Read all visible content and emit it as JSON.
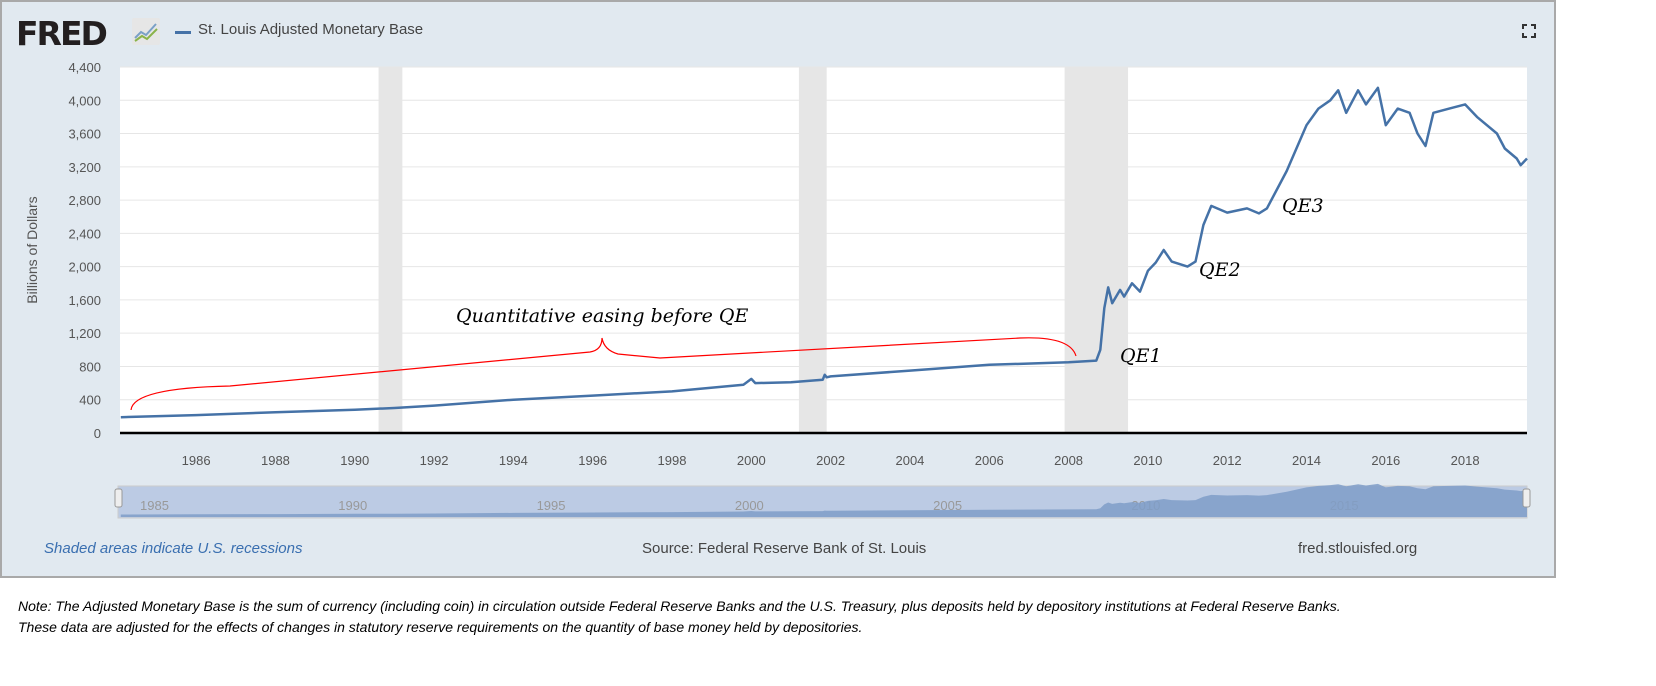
{
  "header": {
    "logo": "FRED",
    "legend_label": "St. Louis Adjusted Monetary Base"
  },
  "footer": {
    "recession_note": "Shaded areas indicate U.S. recessions",
    "source": "Source: Federal Reserve Bank of St. Louis",
    "site": "fred.stlouisfed.org"
  },
  "note": {
    "line1": "Note: The Adjusted Monetary Base is the sum of currency (including coin) in circulation outside Federal Reserve Banks and the U.S. Treasury, plus deposits held by depository institutions at Federal Reserve Banks.",
    "line2": "These data are adjusted for the effects of changes in statutory reserve requirements on the quantity of base money held by depositories."
  },
  "colors": {
    "series": "#4572a7",
    "recession": "#e6e6e6",
    "annotation": "#ff0000",
    "navigator": "#bccbe4"
  },
  "chart_data": {
    "type": "line",
    "ylabel": "Billions of Dollars",
    "xlabel": "",
    "xlim": [
      1984.08,
      2019.56
    ],
    "ylim": [
      0,
      4400
    ],
    "grid": true,
    "legend": "top-left",
    "yticks": [
      "0",
      "400",
      "800",
      "1,200",
      "1,600",
      "2,000",
      "2,400",
      "2,800",
      "3,200",
      "3,600",
      "4,000",
      "4,400"
    ],
    "xticks": [
      "1986",
      "1988",
      "1990",
      "1992",
      "1994",
      "1996",
      "1998",
      "2000",
      "2002",
      "2004",
      "2006",
      "2008",
      "2010",
      "2012",
      "2014",
      "2016",
      "2018"
    ],
    "navigator_ticks": [
      "1985",
      "1990",
      "1995",
      "2000",
      "2005",
      "2010",
      "2015"
    ],
    "recessions": [
      [
        1990.6,
        1991.2
      ],
      [
        2001.2,
        2001.9
      ],
      [
        2007.9,
        2009.5
      ]
    ],
    "series": [
      {
        "name": "St. Louis Adjusted Monetary Base",
        "points": [
          [
            1984.1,
            190
          ],
          [
            1986,
            215
          ],
          [
            1988,
            250
          ],
          [
            1990,
            280
          ],
          [
            1991,
            300
          ],
          [
            1992,
            330
          ],
          [
            1994,
            400
          ],
          [
            1996,
            450
          ],
          [
            1998,
            500
          ],
          [
            1999.8,
            580
          ],
          [
            2000.0,
            650
          ],
          [
            2000.1,
            600
          ],
          [
            2001,
            610
          ],
          [
            2001.8,
            640
          ],
          [
            2001.85,
            700
          ],
          [
            2001.9,
            670
          ],
          [
            2002,
            680
          ],
          [
            2004,
            750
          ],
          [
            2006,
            820
          ],
          [
            2008,
            850
          ],
          [
            2008.7,
            870
          ],
          [
            2008.8,
            1000
          ],
          [
            2008.9,
            1500
          ],
          [
            2009.0,
            1750
          ],
          [
            2009.1,
            1560
          ],
          [
            2009.3,
            1720
          ],
          [
            2009.4,
            1640
          ],
          [
            2009.6,
            1800
          ],
          [
            2009.8,
            1700
          ],
          [
            2010.0,
            1950
          ],
          [
            2010.2,
            2050
          ],
          [
            2010.4,
            2200
          ],
          [
            2010.6,
            2060
          ],
          [
            2011.0,
            2000
          ],
          [
            2011.2,
            2060
          ],
          [
            2011.4,
            2500
          ],
          [
            2011.6,
            2730
          ],
          [
            2012.0,
            2650
          ],
          [
            2012.5,
            2700
          ],
          [
            2012.8,
            2640
          ],
          [
            2013.0,
            2700
          ],
          [
            2013.5,
            3150
          ],
          [
            2014.0,
            3700
          ],
          [
            2014.3,
            3900
          ],
          [
            2014.6,
            4000
          ],
          [
            2014.8,
            4120
          ],
          [
            2015.0,
            3850
          ],
          [
            2015.3,
            4120
          ],
          [
            2015.5,
            3950
          ],
          [
            2015.8,
            4150
          ],
          [
            2016.0,
            3700
          ],
          [
            2016.3,
            3900
          ],
          [
            2016.6,
            3850
          ],
          [
            2016.8,
            3600
          ],
          [
            2017.0,
            3450
          ],
          [
            2017.2,
            3850
          ],
          [
            2017.6,
            3900
          ],
          [
            2018.0,
            3950
          ],
          [
            2018.3,
            3800
          ],
          [
            2018.8,
            3600
          ],
          [
            2019.0,
            3420
          ],
          [
            2019.3,
            3300
          ],
          [
            2019.4,
            3220
          ],
          [
            2019.56,
            3300
          ]
        ]
      }
    ],
    "annotations": [
      "Quantitative easing before QE",
      "QE1",
      "QE2",
      "QE3"
    ]
  }
}
